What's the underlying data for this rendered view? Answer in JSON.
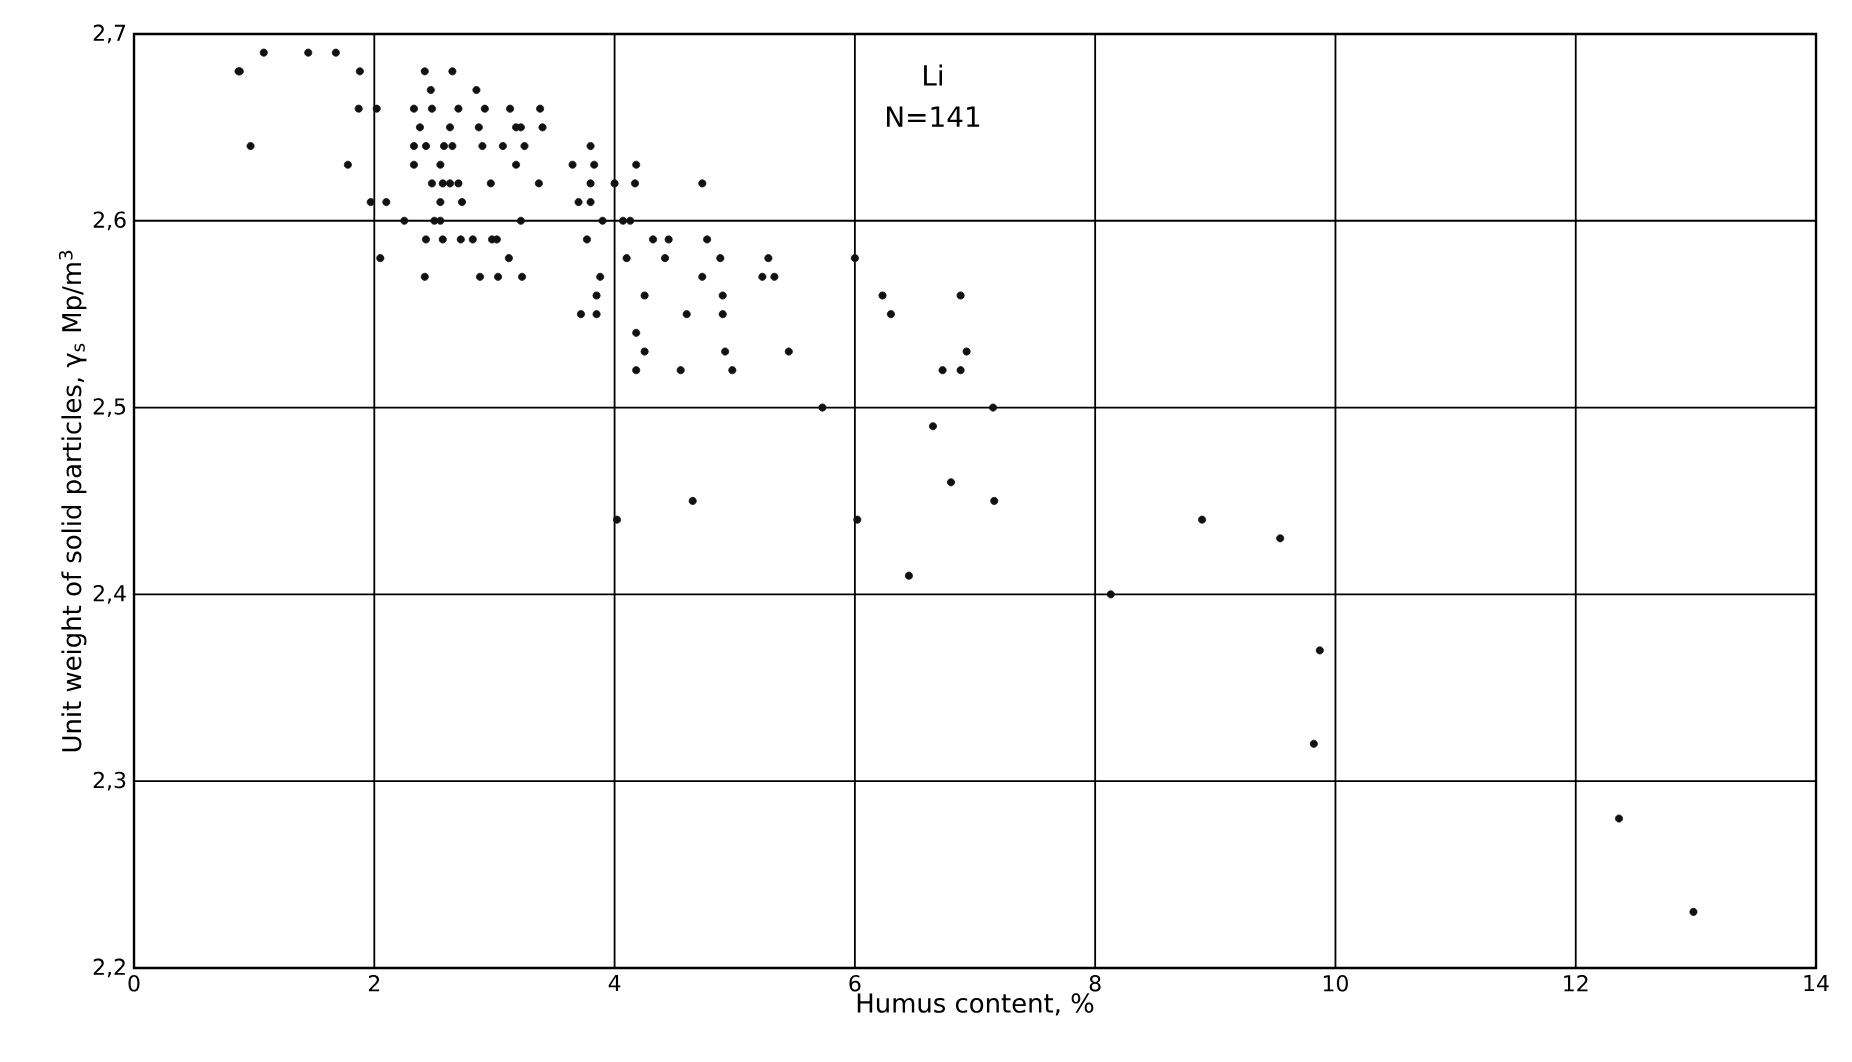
{
  "chart_data": {
    "type": "scatter",
    "xlabel": "Humus content, %",
    "ylabel": "Unit weight of solid particles, γ$_{s}$ Mp/m$^{3}$",
    "annotations": [
      "Li",
      "N=141"
    ],
    "xlim": [
      0,
      14
    ],
    "ylim": [
      2.2,
      2.7
    ],
    "xticks": [
      0,
      2,
      4,
      6,
      8,
      10,
      12,
      14
    ],
    "yticks": [
      {
        "value": 2.2,
        "label": "2,2"
      },
      {
        "value": 2.3,
        "label": "2,3"
      },
      {
        "value": 2.4,
        "label": "2,4"
      },
      {
        "value": 2.5,
        "label": "2,5"
      },
      {
        "value": 2.6,
        "label": "2,6"
      },
      {
        "value": 2.7,
        "label": "2,7"
      }
    ],
    "grid": true,
    "marker": "circle",
    "series": [
      {
        "color": "#111111",
        "x": [
          0.87,
          0.88,
          1.08,
          1.45,
          1.68,
          1.88,
          0.97,
          1.87,
          2.02,
          1.78,
          1.97,
          2.1,
          2.42,
          2.65,
          2.47,
          2.85,
          2.33,
          2.48,
          2.7,
          2.92,
          3.13,
          3.38,
          2.38,
          2.63,
          2.87,
          3.18,
          3.22,
          3.4,
          2.33,
          2.43,
          2.58,
          2.65,
          2.9,
          3.07,
          3.25,
          3.8,
          2.33,
          2.55,
          3.18,
          3.65,
          3.83,
          4.18,
          2.48,
          2.57,
          2.63,
          2.7,
          2.97,
          3.37,
          3.8,
          4.0,
          4.17,
          4.73,
          2.55,
          2.73,
          3.7,
          3.8,
          2.25,
          2.5,
          2.55,
          3.22,
          3.9,
          4.07,
          4.13,
          2.43,
          2.57,
          2.72,
          2.82,
          2.98,
          3.02,
          3.77,
          4.32,
          4.45,
          4.77,
          2.05,
          3.12,
          4.1,
          4.42,
          4.88,
          5.28,
          6.0,
          2.42,
          2.88,
          3.03,
          3.23,
          3.88,
          4.73,
          5.23,
          5.33,
          3.85,
          4.25,
          4.9,
          6.23,
          6.88,
          3.72,
          3.85,
          4.6,
          4.9,
          6.3,
          4.18,
          4.25,
          4.92,
          5.45,
          6.93,
          4.18,
          4.55,
          4.98,
          6.73,
          6.88,
          5.73,
          7.15,
          6.65,
          6.8,
          7.16,
          4.65,
          4.02,
          6.02,
          8.89,
          9.54,
          6.45,
          8.13,
          9.87,
          9.82,
          12.36,
          12.98
        ],
        "values": [
          2.68,
          2.68,
          2.69,
          2.69,
          2.69,
          2.68,
          2.64,
          2.66,
          2.66,
          2.63,
          2.61,
          2.61,
          2.68,
          2.68,
          2.67,
          2.67,
          2.66,
          2.66,
          2.66,
          2.66,
          2.66,
          2.66,
          2.65,
          2.65,
          2.65,
          2.65,
          2.65,
          2.65,
          2.64,
          2.64,
          2.64,
          2.64,
          2.64,
          2.64,
          2.64,
          2.64,
          2.63,
          2.63,
          2.63,
          2.63,
          2.63,
          2.63,
          2.62,
          2.62,
          2.62,
          2.62,
          2.62,
          2.62,
          2.62,
          2.62,
          2.62,
          2.62,
          2.61,
          2.61,
          2.61,
          2.61,
          2.6,
          2.6,
          2.6,
          2.6,
          2.6,
          2.6,
          2.6,
          2.59,
          2.59,
          2.59,
          2.59,
          2.59,
          2.59,
          2.59,
          2.59,
          2.59,
          2.59,
          2.58,
          2.58,
          2.58,
          2.58,
          2.58,
          2.58,
          2.58,
          2.57,
          2.57,
          2.57,
          2.57,
          2.57,
          2.57,
          2.57,
          2.57,
          2.56,
          2.56,
          2.56,
          2.56,
          2.56,
          2.55,
          2.55,
          2.55,
          2.55,
          2.55,
          2.54,
          2.53,
          2.53,
          2.53,
          2.53,
          2.52,
          2.52,
          2.52,
          2.52,
          2.52,
          2.5,
          2.5,
          2.49,
          2.46,
          2.45,
          2.45,
          2.44,
          2.44,
          2.44,
          2.43,
          2.41,
          2.4,
          2.37,
          2.32,
          2.28,
          2.23
        ]
      }
    ]
  }
}
